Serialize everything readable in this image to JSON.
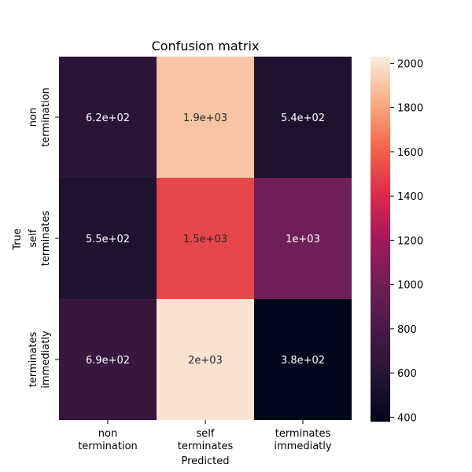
{
  "chart_data": {
    "type": "heatmap",
    "title": "Confusion matrix",
    "xlabel": "Predicted",
    "ylabel": "True",
    "x_categories": [
      [
        "non",
        "termination"
      ],
      [
        "self",
        "terminates"
      ],
      [
        "terminates",
        "immediatly"
      ]
    ],
    "y_categories": [
      [
        "non",
        "termination"
      ],
      [
        "self",
        "terminates"
      ],
      [
        "terminates",
        "immediatly"
      ]
    ],
    "values": [
      [
        620,
        1900,
        540
      ],
      [
        550,
        1500,
        1000
      ],
      [
        690,
        2000,
        380
      ]
    ],
    "annotations": [
      [
        "6.2e+02",
        "1.9e+03",
        "5.4e+02"
      ],
      [
        "5.5e+02",
        "1.5e+03",
        "1e+03"
      ],
      [
        "6.9e+02",
        "2e+03",
        "3.8e+02"
      ]
    ],
    "colorbar": {
      "min": 380,
      "max": 2030,
      "ticks": [
        400,
        600,
        800,
        1000,
        1200,
        1400,
        1600,
        1800,
        2000
      ],
      "colormap": "rocket"
    }
  }
}
